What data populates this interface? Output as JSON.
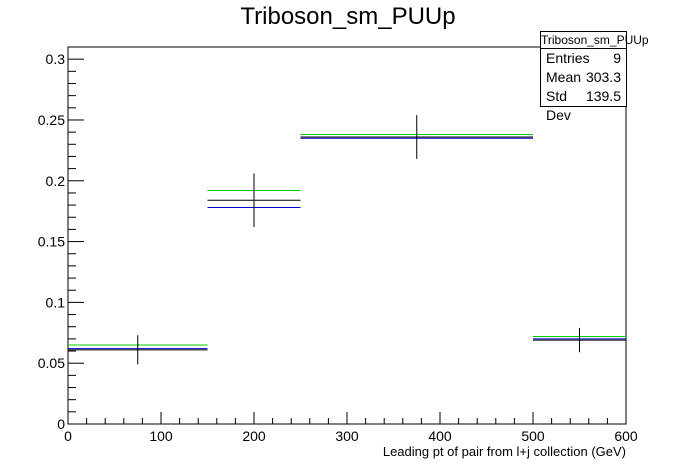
{
  "chart_data": {
    "type": "histogram",
    "title": "Triboson_sm_PUUp",
    "xlabel": "Leading pt of pair from l+j collection (GeV)",
    "ylabel": "",
    "xlim": [
      0,
      600
    ],
    "ylim": [
      0,
      0.31
    ],
    "x_ticks": [
      0,
      100,
      200,
      300,
      400,
      500,
      600
    ],
    "y_ticks": [
      0,
      0.05,
      0.1,
      0.15,
      0.2,
      0.25,
      0.3
    ],
    "x_tick_labels": [
      "0",
      "100",
      "200",
      "300",
      "400",
      "500",
      "600"
    ],
    "y_tick_labels": [
      "0",
      "0.05",
      "0.1",
      "0.15",
      "0.2",
      "0.25",
      "0.3"
    ],
    "bins": [
      {
        "x_low": 0,
        "x_high": 150,
        "center": 75
      },
      {
        "x_low": 150,
        "x_high": 250,
        "center": 200
      },
      {
        "x_low": 250,
        "x_high": 500,
        "center": 375
      },
      {
        "x_low": 500,
        "x_high": 600,
        "center": 550
      }
    ],
    "series": [
      {
        "color": "#00cc00",
        "values": [
          0.065,
          0.192,
          0.238,
          0.072
        ]
      },
      {
        "color": "#0000cc",
        "values": [
          0.062,
          0.178,
          0.235,
          0.07
        ]
      },
      {
        "color": "#000000",
        "values": [
          0.061,
          0.184,
          0.236,
          0.069
        ],
        "errors": [
          0.012,
          0.022,
          0.018,
          0.01
        ]
      }
    ],
    "stats": {
      "title": "Triboson_sm_PUUp",
      "rows": [
        {
          "label": "Entries",
          "value": "9"
        },
        {
          "label": "Mean",
          "value": "303.3"
        },
        {
          "label": "Std Dev",
          "value": "139.5"
        }
      ]
    }
  }
}
